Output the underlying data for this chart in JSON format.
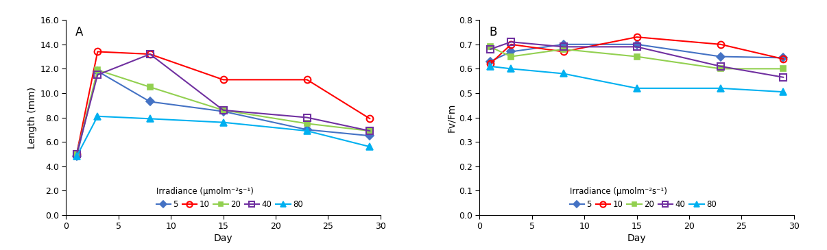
{
  "panel_A": {
    "title": "A",
    "xlabel": "Day",
    "ylabel": "Length (mm)",
    "ylim": [
      0.0,
      16.0
    ],
    "yticks": [
      0.0,
      2.0,
      4.0,
      6.0,
      8.0,
      10.0,
      12.0,
      14.0,
      16.0
    ],
    "xlim": [
      0,
      30
    ],
    "xticks": [
      0,
      5,
      10,
      15,
      20,
      25,
      30
    ],
    "days": [
      1,
      3,
      8,
      15,
      23,
      29
    ],
    "series": {
      "5": {
        "values": [
          4.8,
          11.8,
          9.3,
          8.5,
          7.0,
          6.5
        ],
        "color": "#4472C4",
        "marker": "D",
        "markersize": 6,
        "fillstyle": "full"
      },
      "10": {
        "values": [
          5.0,
          13.4,
          13.2,
          11.1,
          11.1,
          7.9
        ],
        "color": "#FF0000",
        "marker": "o",
        "markersize": 7,
        "fillstyle": "none"
      },
      "20": {
        "values": [
          5.0,
          11.9,
          10.5,
          8.6,
          7.5,
          6.9
        ],
        "color": "#92D050",
        "marker": "s",
        "markersize": 6,
        "fillstyle": "full"
      },
      "40": {
        "values": [
          5.0,
          11.5,
          13.2,
          8.6,
          8.0,
          6.9
        ],
        "color": "#7030A0",
        "marker": "s",
        "markersize": 7,
        "fillstyle": "none"
      },
      "80": {
        "values": [
          4.8,
          8.1,
          7.9,
          7.6,
          6.9,
          5.6
        ],
        "color": "#00B0F0",
        "marker": "^",
        "markersize": 7,
        "fillstyle": "full"
      }
    },
    "legend_title": "Irradiance (μmolm⁻²s⁻¹)",
    "legend_labels": [
      "5",
      "10",
      "20",
      "40",
      "80"
    ]
  },
  "panel_B": {
    "title": "B",
    "xlabel": "Day",
    "ylabel": "Fv/Fm",
    "ylim": [
      0.0,
      0.8
    ],
    "yticks": [
      0.0,
      0.1,
      0.2,
      0.3,
      0.4,
      0.5,
      0.6,
      0.7,
      0.8
    ],
    "xlim": [
      0,
      30
    ],
    "xticks": [
      0,
      5,
      10,
      15,
      20,
      25,
      30
    ],
    "days": [
      1,
      3,
      8,
      15,
      23,
      29
    ],
    "series": {
      "5": {
        "values": [
          0.63,
          0.67,
          0.7,
          0.7,
          0.65,
          0.645
        ],
        "color": "#4472C4",
        "marker": "D",
        "markersize": 6,
        "fillstyle": "full"
      },
      "10": {
        "values": [
          0.62,
          0.7,
          0.67,
          0.73,
          0.7,
          0.64
        ],
        "color": "#FF0000",
        "marker": "o",
        "markersize": 7,
        "fillstyle": "none"
      },
      "20": {
        "values": [
          0.69,
          0.65,
          0.68,
          0.65,
          0.6,
          0.6
        ],
        "color": "#92D050",
        "marker": "s",
        "markersize": 6,
        "fillstyle": "full"
      },
      "40": {
        "values": [
          0.68,
          0.71,
          0.69,
          0.69,
          0.61,
          0.565
        ],
        "color": "#7030A0",
        "marker": "s",
        "markersize": 7,
        "fillstyle": "none"
      },
      "80": {
        "values": [
          0.61,
          0.6,
          0.58,
          0.52,
          0.52,
          0.505
        ],
        "color": "#00B0F0",
        "marker": "^",
        "markersize": 7,
        "fillstyle": "full"
      }
    },
    "legend_title": "Irradiance (μmolm⁻²s⁻¹)",
    "legend_labels": [
      "5",
      "10",
      "20",
      "40",
      "80"
    ]
  },
  "figsize": [
    12.06,
    3.65
  ],
  "dpi": 100,
  "background_color": "#FFFFFF",
  "linewidth": 1.5,
  "tick_labelsize": 9,
  "axis_labelsize": 10,
  "legend_fontsize": 8.5,
  "legend_title_fontsize": 8.5,
  "panel_label_fontsize": 12
}
